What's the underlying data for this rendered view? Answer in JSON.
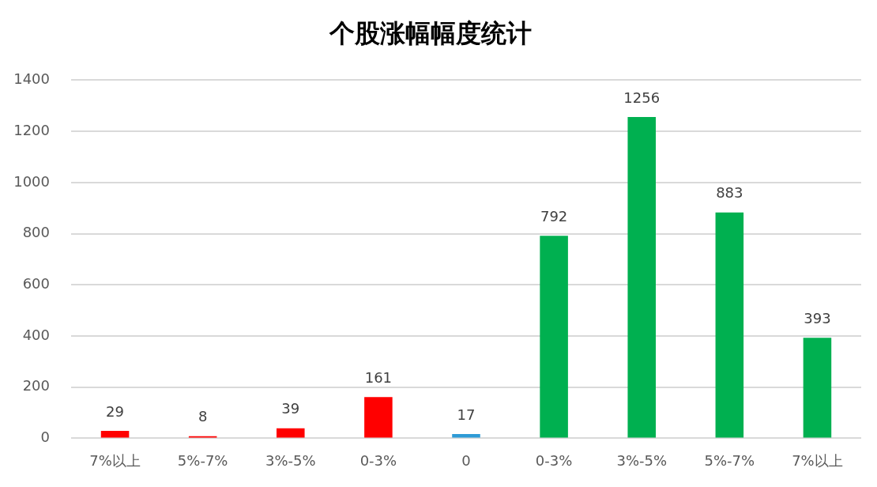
{
  "chart_data": {
    "type": "bar",
    "title": "个股涨幅幅度统计",
    "categories": [
      "7%以上",
      "5%-7%",
      "3%-5%",
      "0-3%",
      "0",
      "0-3%",
      "3%-5%",
      "5%-7%",
      "7%以上"
    ],
    "values": [
      29,
      8,
      39,
      161,
      17,
      792,
      1256,
      883,
      393
    ],
    "colors": [
      "#ff0000",
      "#ff0000",
      "#ff0000",
      "#ff0000",
      "#2e9bd6",
      "#00b050",
      "#00b050",
      "#00b050",
      "#00b050"
    ],
    "ylim": [
      0,
      1400
    ],
    "yticks": [
      0,
      200,
      400,
      600,
      800,
      1000,
      1200,
      1400
    ],
    "grid": "y",
    "data_labels": true
  }
}
